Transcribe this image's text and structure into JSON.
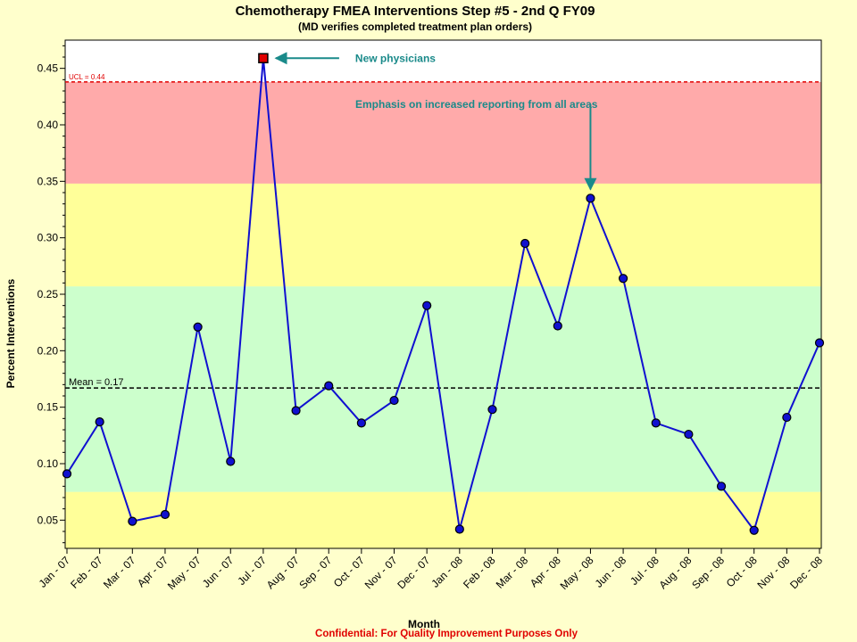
{
  "chart_data": {
    "type": "line",
    "title": "Chemotherapy FMEA Interventions Step #5 - 2nd Q FY09",
    "subtitle": "(MD verifies completed treatment plan orders)",
    "xlabel": "Month",
    "ylabel": "Percent Interventions",
    "ylim": [
      0.025,
      0.475
    ],
    "yticks": [
      "0.05",
      "0.10",
      "0.15",
      "0.20",
      "0.25",
      "0.30",
      "0.35",
      "0.40",
      "0.45"
    ],
    "categories": [
      "Jan - 07",
      "Feb - 07",
      "Mar - 07",
      "Apr - 07",
      "May - 07",
      "Jun - 07",
      "Jul - 07",
      "Aug - 07",
      "Sep - 07",
      "Oct - 07",
      "Nov - 07",
      "Dec - 07",
      "Jan - 08",
      "Feb - 08",
      "Mar - 08",
      "Apr - 08",
      "May - 08",
      "Jun - 08",
      "Jul - 08",
      "Aug - 08",
      "Sep - 08",
      "Oct - 08",
      "Nov - 08",
      "Dec - 08"
    ],
    "series": [
      {
        "values": [
          0.091,
          0.137,
          0.049,
          0.055,
          0.221,
          0.102,
          0.459,
          0.147,
          0.169,
          0.136,
          0.156,
          0.24,
          0.042,
          0.148,
          0.295,
          0.222,
          0.335,
          0.264,
          0.136,
          0.126,
          0.08,
          0.041,
          0.141,
          0.207
        ],
        "color": "#1010d0"
      }
    ],
    "highlighted_point": {
      "index": 6,
      "color": "#e00000"
    },
    "mean": {
      "value": 0.167,
      "label": "Mean = 0.17"
    },
    "ucl": {
      "value": 0.438,
      "label": "UCL = 0.44"
    },
    "bands": [
      {
        "from": 0.025,
        "to": 0.075,
        "color": "#ffff99"
      },
      {
        "from": 0.075,
        "to": 0.257,
        "color": "#ccffcc"
      },
      {
        "from": 0.257,
        "to": 0.348,
        "color": "#ffff99"
      },
      {
        "from": 0.348,
        "to": 0.438,
        "color": "#ffaaaa"
      },
      {
        "from": 0.438,
        "to": 0.475,
        "color": "#ffffff"
      }
    ],
    "annotations": [
      {
        "text": "New physicians",
        "target_index": 6,
        "color": "#1a8a8a"
      },
      {
        "text": "Emphasis on increased reporting from all areas",
        "target_index": 16,
        "color": "#1a8a8a"
      }
    ],
    "footer": "Confidential:  For Quality Improvement Purposes Only",
    "grid": false,
    "legend": "none"
  }
}
